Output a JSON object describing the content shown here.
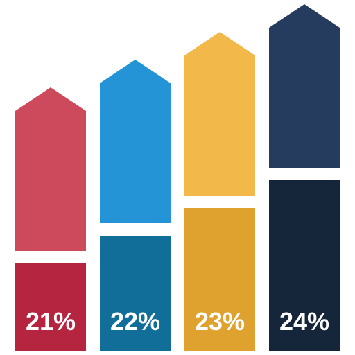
{
  "chart_data": {
    "type": "bar",
    "categories": [
      "",
      "",
      "",
      ""
    ],
    "values": [
      21,
      22,
      23,
      24
    ],
    "labels": [
      "21%",
      "22%",
      "23%",
      "24%"
    ],
    "style": "arrow-bars",
    "colors": [
      {
        "arrow": "#cc4a5c",
        "base": "#b5253f"
      },
      {
        "arrow": "#2594d6",
        "base": "#106e99"
      },
      {
        "arrow": "#f2b84a",
        "base": "#e0a22e"
      },
      {
        "arrow": "#263c5e",
        "base": "#15253a"
      }
    ],
    "title": "",
    "xlabel": "",
    "ylabel": "",
    "grid": false,
    "legend": "none"
  }
}
